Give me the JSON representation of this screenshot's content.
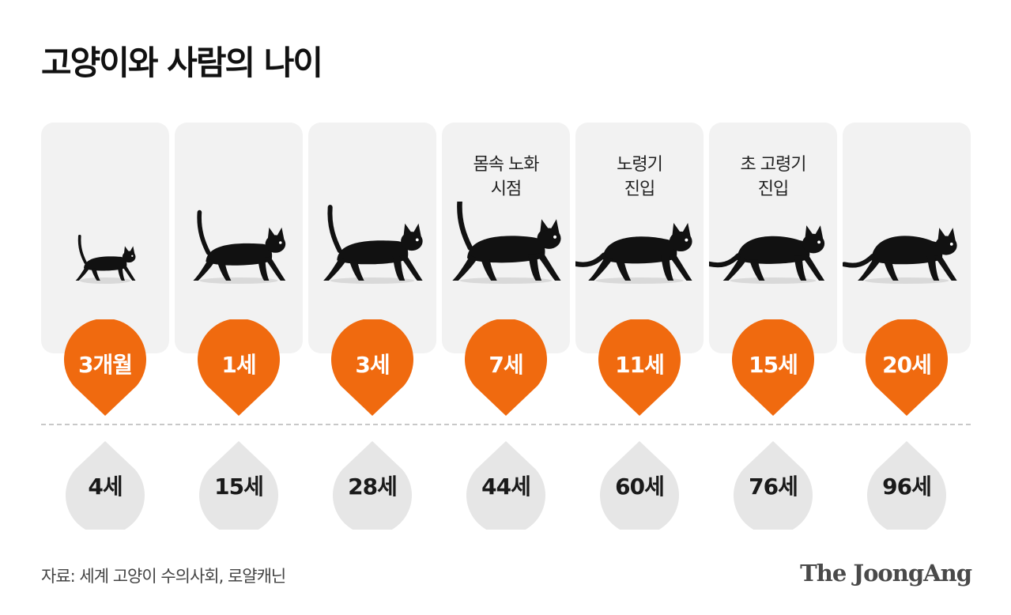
{
  "title": "고양이와 사람의 나이",
  "colors": {
    "accent": "#f06a0f",
    "panel": "#f2f2f2",
    "drop": "#e6e6e6",
    "cat": "#111111"
  },
  "items": [
    {
      "cat_age": "3개월",
      "human_age": "4세",
      "stage": [],
      "cat_icon": "kitten-icon"
    },
    {
      "cat_age": "1세",
      "human_age": "15세",
      "stage": [],
      "cat_icon": "young-cat-icon"
    },
    {
      "cat_age": "3세",
      "human_age": "28세",
      "stage": [],
      "cat_icon": "adult-cat-icon"
    },
    {
      "cat_age": "7세",
      "human_age": "44세",
      "stage": [
        "몸속 노화",
        "시점"
      ],
      "cat_icon": "mature-cat-icon"
    },
    {
      "cat_age": "11세",
      "human_age": "60세",
      "stage": [
        "노령기",
        "진입"
      ],
      "cat_icon": "senior-cat-icon"
    },
    {
      "cat_age": "15세",
      "human_age": "76세",
      "stage": [
        "초 고령기",
        "진입"
      ],
      "cat_icon": "super-senior-cat-icon"
    },
    {
      "cat_age": "20세",
      "human_age": "96세",
      "stage": [],
      "cat_icon": "old-cat-icon"
    }
  ],
  "source": "자료: 세계 고양이 수의사회, 로얄캐닌",
  "logo": "The JoongAng"
}
